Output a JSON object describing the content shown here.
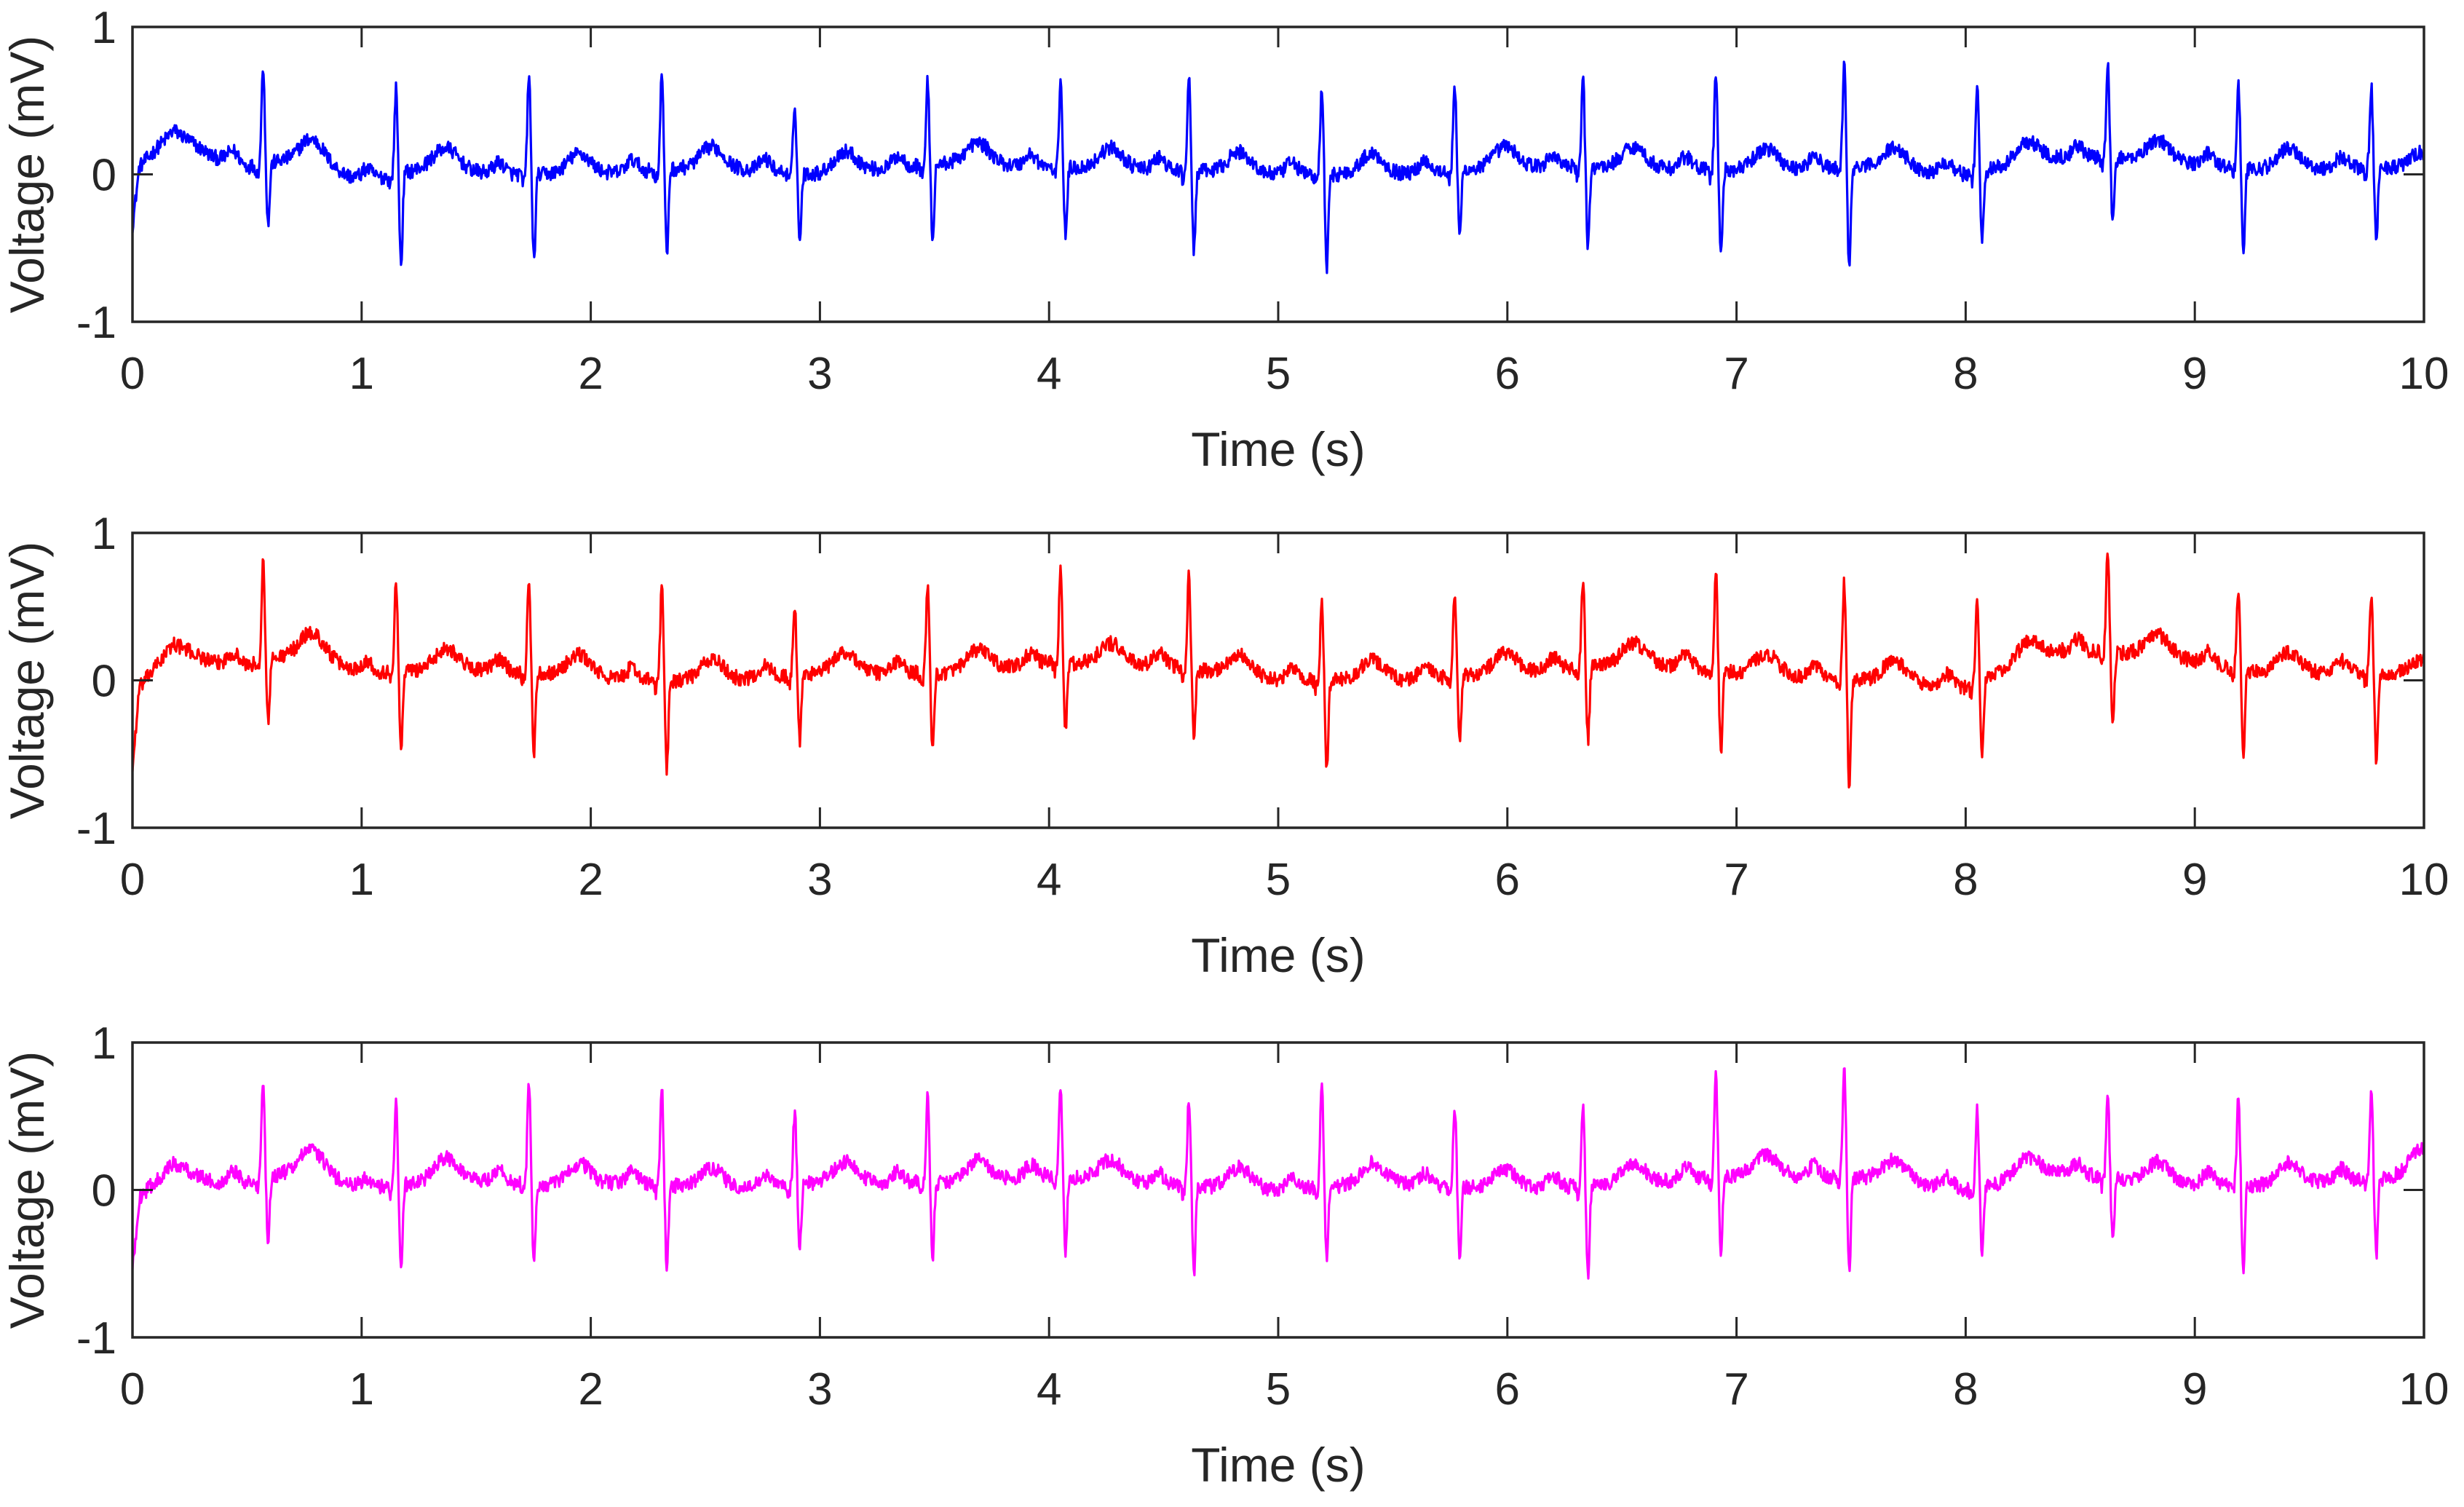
{
  "chart_data": [
    {
      "type": "line",
      "xlabel": "Time (s)",
      "ylabel": "Voltage (mV)",
      "xlim": [
        0,
        10
      ],
      "ylim": [
        -1,
        1
      ],
      "xticks": [
        0,
        1,
        2,
        3,
        4,
        5,
        6,
        7,
        8,
        9,
        10
      ],
      "yticks": [
        -1,
        0,
        1
      ],
      "grid": false,
      "color": "#0000ff",
      "beats": [
        {
          "t": 0.57,
          "r": 0.68,
          "s": -0.42
        },
        {
          "t": 1.15,
          "r": 0.58,
          "s": -0.62
        },
        {
          "t": 1.73,
          "r": 0.68,
          "s": -0.58
        },
        {
          "t": 2.31,
          "r": 0.65,
          "s": -0.58
        },
        {
          "t": 2.89,
          "r": 0.47,
          "s": -0.47
        },
        {
          "t": 3.47,
          "r": 0.57,
          "s": -0.52
        },
        {
          "t": 4.05,
          "r": 0.6,
          "s": -0.47
        },
        {
          "t": 4.61,
          "r": 0.65,
          "s": -0.55
        },
        {
          "t": 5.19,
          "r": 0.57,
          "s": -0.65
        },
        {
          "t": 5.77,
          "r": 0.58,
          "s": -0.45
        },
        {
          "t": 6.33,
          "r": 0.6,
          "s": -0.55
        },
        {
          "t": 6.91,
          "r": 0.67,
          "s": -0.6
        },
        {
          "t": 7.47,
          "r": 0.72,
          "s": -0.7
        },
        {
          "t": 8.05,
          "r": 0.6,
          "s": -0.48
        },
        {
          "t": 8.62,
          "r": 0.67,
          "s": -0.45
        },
        {
          "t": 9.19,
          "r": 0.58,
          "s": -0.58
        },
        {
          "t": 9.77,
          "r": 0.55,
          "s": -0.52
        }
      ],
      "baseline": [
        {
          "x": 0.0,
          "y": -0.35
        },
        {
          "x": 0.03,
          "y": 0.05
        },
        {
          "x": 0.18,
          "y": 0.3
        },
        {
          "x": 0.35,
          "y": 0.12
        },
        {
          "x": 0.5,
          "y": 0.05
        },
        {
          "x": 0.75,
          "y": 0.12
        },
        {
          "x": 1.0,
          "y": -0.05
        },
        {
          "x": 1.3,
          "y": 0.05
        },
        {
          "x": 1.6,
          "y": 0.0
        },
        {
          "x": 2.0,
          "y": 0.0
        },
        {
          "x": 2.5,
          "y": 0.05
        },
        {
          "x": 3.0,
          "y": 0.0
        },
        {
          "x": 3.6,
          "y": 0.08
        },
        {
          "x": 4.0,
          "y": 0.05
        },
        {
          "x": 4.5,
          "y": 0.03
        },
        {
          "x": 5.0,
          "y": 0.0
        },
        {
          "x": 5.5,
          "y": 0.0
        },
        {
          "x": 6.0,
          "y": 0.05
        },
        {
          "x": 6.5,
          "y": 0.05
        },
        {
          "x": 7.0,
          "y": 0.03
        },
        {
          "x": 7.6,
          "y": 0.05
        },
        {
          "x": 8.0,
          "y": 0.0
        },
        {
          "x": 8.4,
          "y": 0.12
        },
        {
          "x": 8.8,
          "y": 0.1
        },
        {
          "x": 9.3,
          "y": 0.03
        },
        {
          "x": 9.85,
          "y": 0.05
        },
        {
          "x": 10.0,
          "y": 0.0
        }
      ],
      "noise": 0.05
    },
    {
      "type": "line",
      "xlabel": "Time (s)",
      "ylabel": "Voltage (mV)",
      "xlim": [
        0,
        10
      ],
      "ylim": [
        -1,
        1
      ],
      "xticks": [
        0,
        1,
        2,
        3,
        4,
        5,
        6,
        7,
        8,
        9,
        10
      ],
      "yticks": [
        -1,
        0,
        1
      ],
      "grid": false,
      "color": "#ff0000",
      "beats": [
        {
          "t": 0.57,
          "r": 0.68,
          "s": -0.42
        },
        {
          "t": 1.15,
          "r": 0.63,
          "s": -0.55
        },
        {
          "t": 1.73,
          "r": 0.62,
          "s": -0.55
        },
        {
          "t": 2.31,
          "r": 0.65,
          "s": -0.6
        },
        {
          "t": 2.89,
          "r": 0.45,
          "s": -0.45
        },
        {
          "t": 3.47,
          "r": 0.58,
          "s": -0.55
        },
        {
          "t": 4.05,
          "r": 0.62,
          "s": -0.45
        },
        {
          "t": 4.61,
          "r": 0.65,
          "s": -0.48
        },
        {
          "t": 5.19,
          "r": 0.55,
          "s": -0.62
        },
        {
          "t": 5.77,
          "r": 0.55,
          "s": -0.45
        },
        {
          "t": 6.33,
          "r": 0.6,
          "s": -0.5
        },
        {
          "t": 6.91,
          "r": 0.67,
          "s": -0.55
        },
        {
          "t": 7.47,
          "r": 0.65,
          "s": -0.75
        },
        {
          "t": 8.05,
          "r": 0.58,
          "s": -0.52
        },
        {
          "t": 8.62,
          "r": 0.7,
          "s": -0.52
        },
        {
          "t": 9.19,
          "r": 0.55,
          "s": -0.6
        },
        {
          "t": 9.77,
          "r": 0.5,
          "s": -0.6
        }
      ],
      "baseline": [
        {
          "x": 0.0,
          "y": -0.6
        },
        {
          "x": 0.03,
          "y": -0.05
        },
        {
          "x": 0.18,
          "y": 0.25
        },
        {
          "x": 0.35,
          "y": 0.12
        },
        {
          "x": 0.5,
          "y": 0.1
        },
        {
          "x": 0.75,
          "y": 0.2
        },
        {
          "x": 1.0,
          "y": 0.05
        },
        {
          "x": 1.4,
          "y": 0.08
        },
        {
          "x": 1.8,
          "y": 0.05
        },
        {
          "x": 2.2,
          "y": 0.0
        },
        {
          "x": 2.6,
          "y": 0.0
        },
        {
          "x": 3.0,
          "y": 0.05
        },
        {
          "x": 3.6,
          "y": 0.05
        },
        {
          "x": 4.0,
          "y": 0.12
        },
        {
          "x": 4.5,
          "y": 0.1
        },
        {
          "x": 5.0,
          "y": 0.0
        },
        {
          "x": 5.5,
          "y": 0.0
        },
        {
          "x": 6.0,
          "y": 0.05
        },
        {
          "x": 6.6,
          "y": 0.12
        },
        {
          "x": 7.0,
          "y": 0.05
        },
        {
          "x": 7.6,
          "y": 0.0
        },
        {
          "x": 8.0,
          "y": -0.05
        },
        {
          "x": 8.4,
          "y": 0.2
        },
        {
          "x": 8.8,
          "y": 0.18
        },
        {
          "x": 9.3,
          "y": 0.05
        },
        {
          "x": 9.85,
          "y": 0.05
        },
        {
          "x": 10.0,
          "y": 0.0
        }
      ],
      "noise": 0.05
    },
    {
      "type": "line",
      "xlabel": "Time (s)",
      "ylabel": "Voltage (mV)",
      "xlim": [
        0,
        10
      ],
      "ylim": [
        -1,
        1
      ],
      "xticks": [
        0,
        1,
        2,
        3,
        4,
        5,
        6,
        7,
        8,
        9,
        10
      ],
      "yticks": [
        -1,
        0,
        1
      ],
      "grid": false,
      "color": "#ff00ff",
      "beats": [
        {
          "t": 0.57,
          "r": 0.65,
          "s": -0.42
        },
        {
          "t": 1.15,
          "r": 0.6,
          "s": -0.6
        },
        {
          "t": 1.73,
          "r": 0.68,
          "s": -0.55
        },
        {
          "t": 2.31,
          "r": 0.65,
          "s": -0.58
        },
        {
          "t": 2.89,
          "r": 0.5,
          "s": -0.45
        },
        {
          "t": 3.47,
          "r": 0.6,
          "s": -0.52
        },
        {
          "t": 4.05,
          "r": 0.6,
          "s": -0.5
        },
        {
          "t": 4.61,
          "r": 0.6,
          "s": -0.6
        },
        {
          "t": 5.19,
          "r": 0.68,
          "s": -0.52
        },
        {
          "t": 5.77,
          "r": 0.55,
          "s": -0.45
        },
        {
          "t": 6.33,
          "r": 0.52,
          "s": -0.62
        },
        {
          "t": 6.91,
          "r": 0.7,
          "s": -0.52
        },
        {
          "t": 7.47,
          "r": 0.77,
          "s": -0.65
        },
        {
          "t": 8.05,
          "r": 0.57,
          "s": -0.48
        },
        {
          "t": 8.62,
          "r": 0.55,
          "s": -0.45
        },
        {
          "t": 9.19,
          "r": 0.58,
          "s": -0.6
        },
        {
          "t": 9.77,
          "r": 0.58,
          "s": -0.52
        }
      ],
      "baseline": [
        {
          "x": 0.0,
          "y": -0.55
        },
        {
          "x": 0.03,
          "y": -0.05
        },
        {
          "x": 0.18,
          "y": 0.18
        },
        {
          "x": 0.35,
          "y": 0.05
        },
        {
          "x": 0.5,
          "y": 0.05
        },
        {
          "x": 0.75,
          "y": 0.15
        },
        {
          "x": 1.0,
          "y": 0.0
        },
        {
          "x": 1.4,
          "y": 0.08
        },
        {
          "x": 1.8,
          "y": 0.03
        },
        {
          "x": 2.2,
          "y": 0.05
        },
        {
          "x": 2.6,
          "y": 0.0
        },
        {
          "x": 3.0,
          "y": 0.05
        },
        {
          "x": 3.6,
          "y": 0.05
        },
        {
          "x": 4.0,
          "y": 0.1
        },
        {
          "x": 4.5,
          "y": 0.03
        },
        {
          "x": 5.0,
          "y": 0.0
        },
        {
          "x": 5.5,
          "y": 0.05
        },
        {
          "x": 6.0,
          "y": 0.0
        },
        {
          "x": 6.6,
          "y": 0.05
        },
        {
          "x": 7.0,
          "y": 0.1
        },
        {
          "x": 7.6,
          "y": 0.08
        },
        {
          "x": 8.0,
          "y": 0.0
        },
        {
          "x": 8.4,
          "y": 0.12
        },
        {
          "x": 8.8,
          "y": 0.05
        },
        {
          "x": 9.3,
          "y": 0.03
        },
        {
          "x": 9.85,
          "y": 0.08
        },
        {
          "x": 10.0,
          "y": 0.15
        }
      ],
      "noise": 0.05
    }
  ]
}
